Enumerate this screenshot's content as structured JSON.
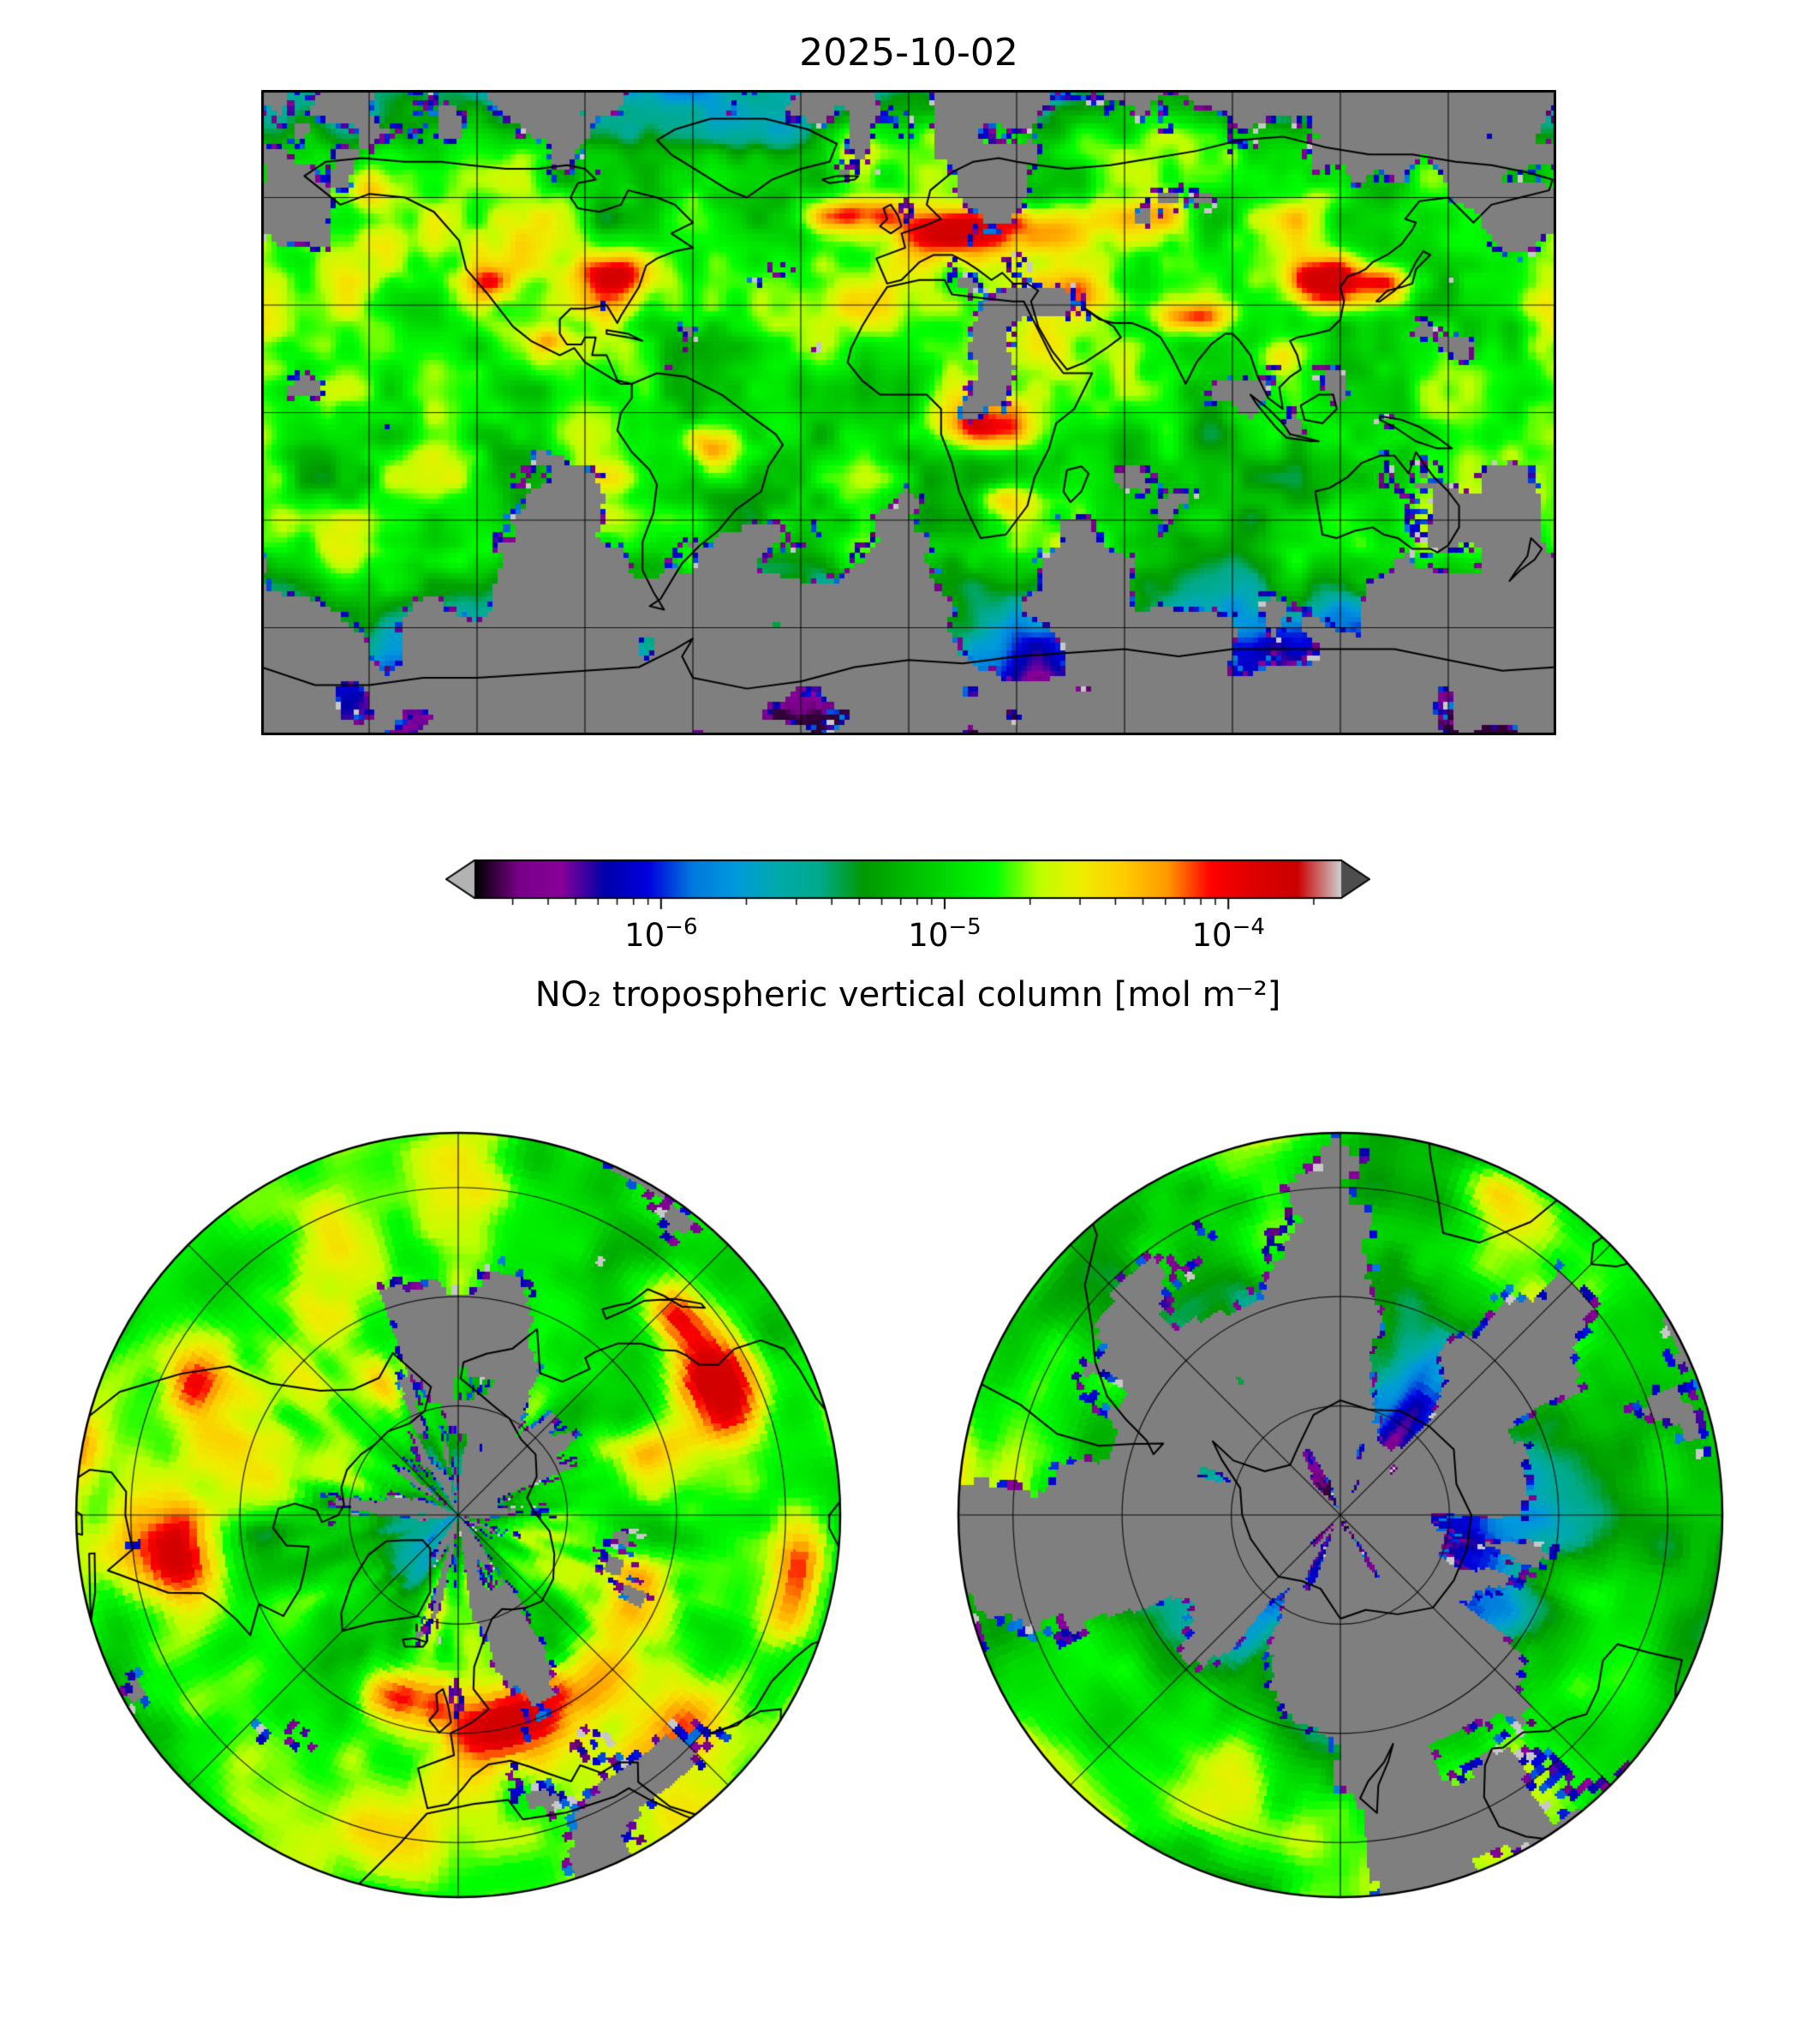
{
  "title": "2025-10-02",
  "colorbar": {
    "label": "NO₂ tropospheric vertical column [mol m⁻²]",
    "ticks": [
      {
        "base": "10",
        "exp": "−6",
        "value": 1e-06
      },
      {
        "base": "10",
        "exp": "−5",
        "value": 1e-05
      },
      {
        "base": "10",
        "exp": "−4",
        "value": 0.0001
      }
    ],
    "scale": "log",
    "colormap": "nipy_spectral",
    "under_color": "#b3b3b3",
    "over_color": "#4d4d4d",
    "no_data_color": "#7f7f7f"
  },
  "chart_data": {
    "type": "heatmap",
    "title": "2025-10-02",
    "variable": "NO₂ tropospheric vertical column",
    "units": "mol m⁻²",
    "scale": "log",
    "colormap": "nipy_spectral",
    "tick_values": [
      1e-06,
      1e-05,
      0.0001
    ],
    "approx_range": [
      2.2e-07,
      0.00025
    ],
    "no_data_color": "#7f7f7f",
    "panels": [
      {
        "name": "global",
        "projection": "equirectangular",
        "lon_range": [
          -180,
          180
        ],
        "lat_range": [
          -90,
          90
        ],
        "gridline_interval_deg": 30
      },
      {
        "name": "north-polar",
        "projection": "polar azimuthal (North Pole)",
        "edge_latitude": 20,
        "radial_interval_deg": 45
      },
      {
        "name": "south-polar",
        "projection": "polar azimuthal (South Pole)",
        "edge_latitude": -20,
        "radial_interval_deg": 45
      }
    ],
    "high_value_regions": [
      "Europe",
      "North Atlantic",
      "East Asia",
      "northern India",
      "central Africa",
      "southern Africa",
      "Brazil",
      "eastern North America"
    ],
    "low_or_missing_regions": [
      "Southern Ocean",
      "Antarctica interior",
      "high Arctic",
      "scattered tropical swath gaps"
    ]
  }
}
